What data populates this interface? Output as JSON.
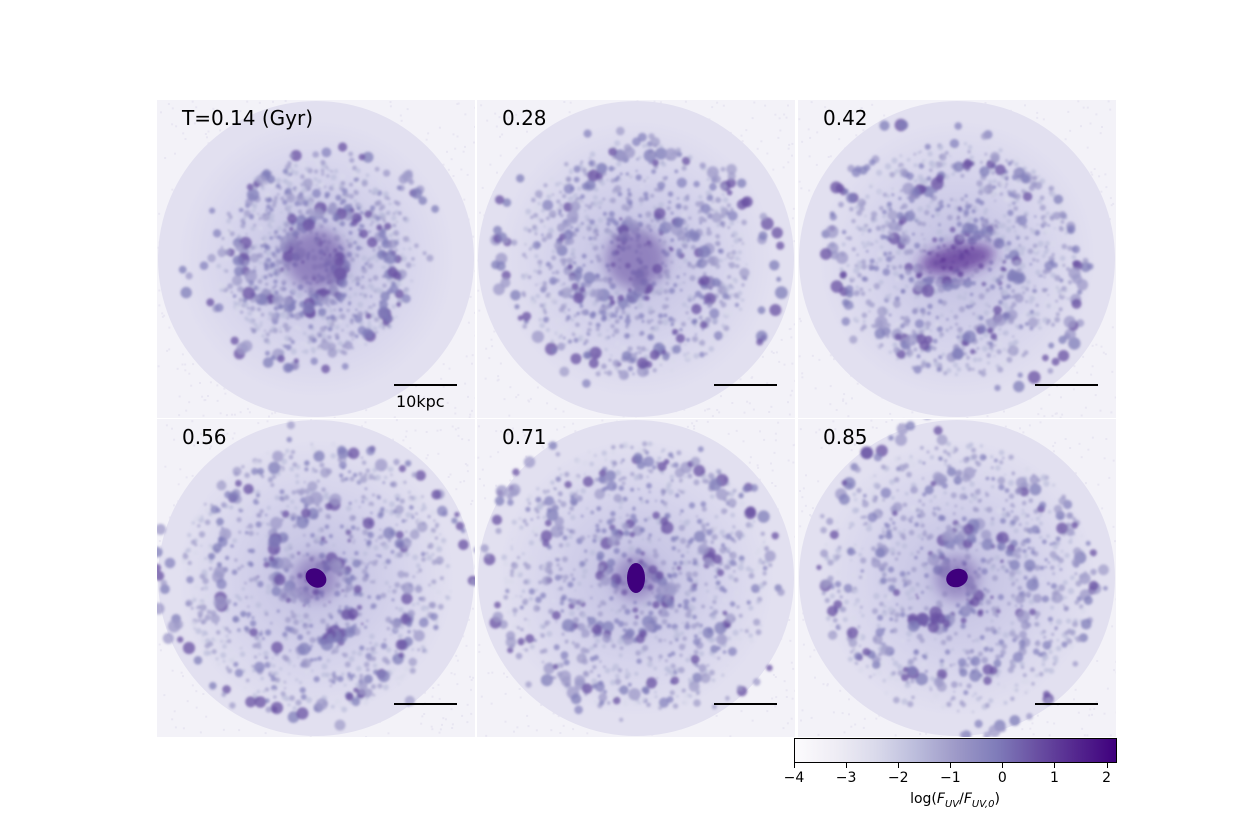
{
  "panels": [
    {
      "label": "T=0.14 (Gyr)",
      "time_gyr": 0.14,
      "bulge": "none"
    },
    {
      "label": "0.28",
      "time_gyr": 0.28,
      "bulge": "none"
    },
    {
      "label": "0.42",
      "time_gyr": 0.42,
      "bulge": "bar"
    },
    {
      "label": "0.56",
      "time_gyr": 0.56,
      "bulge": "compact"
    },
    {
      "label": "0.71",
      "time_gyr": 0.71,
      "bulge": "compact"
    },
    {
      "label": "0.85",
      "time_gyr": 0.85,
      "bulge": "compact"
    }
  ],
  "scalebar": {
    "label": "10kpc"
  },
  "colorbar": {
    "label_prefix": "log(",
    "label_F1": "F",
    "label_sub1": "UV",
    "label_mid": "/",
    "label_F2": "F",
    "label_sub2": "UV,0",
    "label_suffix": ")",
    "min": -4,
    "max": 2.2,
    "ticks": [
      "−4",
      "−3",
      "−2",
      "−1",
      "0",
      "1",
      "2"
    ],
    "tick_values": [
      -4,
      -3,
      -2,
      -1,
      0,
      1,
      2
    ],
    "colors": [
      "#fcfbfd",
      "#efedf5",
      "#dadaeb",
      "#bcbddc",
      "#9e9ac8",
      "#807dba",
      "#6a51a3",
      "#54278f",
      "#3f007d"
    ]
  }
}
